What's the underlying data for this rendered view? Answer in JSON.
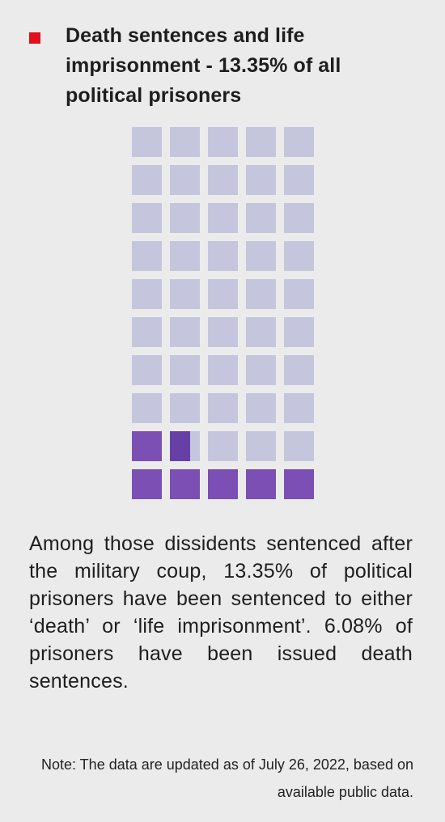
{
  "legend": {
    "marker_color": "#e0101c"
  },
  "title": "Death sentences and life imprisonment - 13.35% of all political prisoners",
  "chart_data": {
    "type": "waffle",
    "title": "Death sentences and life imprisonment - 13.35% of all political prisoners",
    "total_squares": 50,
    "columns": 5,
    "rows": 10,
    "fill_order": "bottom-to-top, left-to-right",
    "value_percent": 13.35,
    "filled_squares": 6.675,
    "colors": {
      "filled": "#7c4fb4",
      "partial_accent": "#6640a6",
      "empty": "#c5c6dd"
    }
  },
  "description": "Among those dissidents sentenced after the military coup, 13.35% of political prisoners have been sentenced to either ‘death’ or ‘life imprisonment’. 6.08% of prisoners have been issued death sentences.",
  "note": "Note: The data are updated as of July 26, 2022, based on available public data."
}
